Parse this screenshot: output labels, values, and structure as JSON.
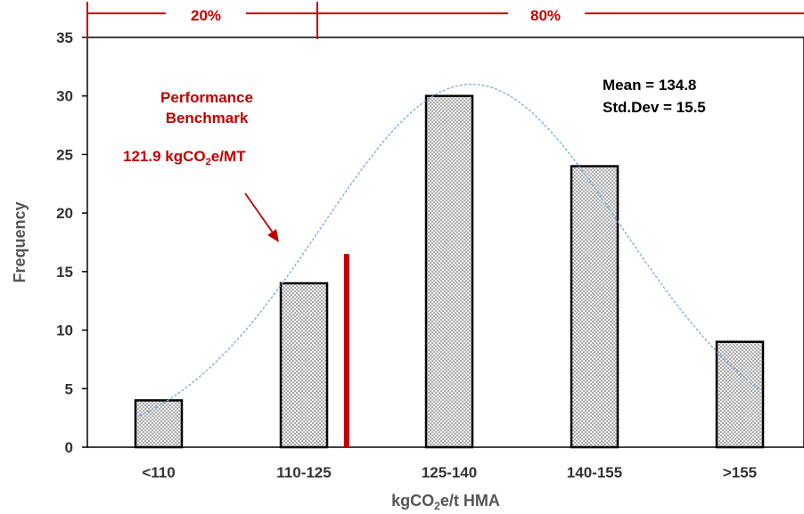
{
  "chart_data": {
    "type": "bar",
    "categories": [
      "<110",
      "110-125",
      "125-140",
      "140-155",
      ">155"
    ],
    "values": [
      4,
      14,
      30,
      24,
      9
    ],
    "xlabel": {
      "main": "kgCO",
      "sub": "2",
      "rest": "e/t HMA"
    },
    "ylabel": "Frequency",
    "ylim": [
      0,
      35
    ],
    "yticks": [
      0,
      5,
      10,
      15,
      20,
      25,
      30,
      35
    ],
    "grid": false,
    "fit_curve": {
      "mean": 134.8,
      "std_dev": 15.5,
      "style": "dotted",
      "color": "#7ba7d9"
    },
    "benchmark": {
      "value": 121.9,
      "line_top": 16.5,
      "label_line1": "Performance",
      "label_line2": "Benchmark",
      "value_label": {
        "main": "121.9 kgCO",
        "sub": "2",
        "rest": "e/MT"
      }
    },
    "stats": {
      "mean_label": "Mean = 134.8",
      "std_label": "Std.Dev = 15.5"
    },
    "percentile_bar": {
      "left_label": "20%",
      "right_label": "80%"
    },
    "colors": {
      "bar_fill": "#eeeeee",
      "bar_dots": "#555555",
      "red": "#c00000",
      "axis": "#000000"
    }
  }
}
